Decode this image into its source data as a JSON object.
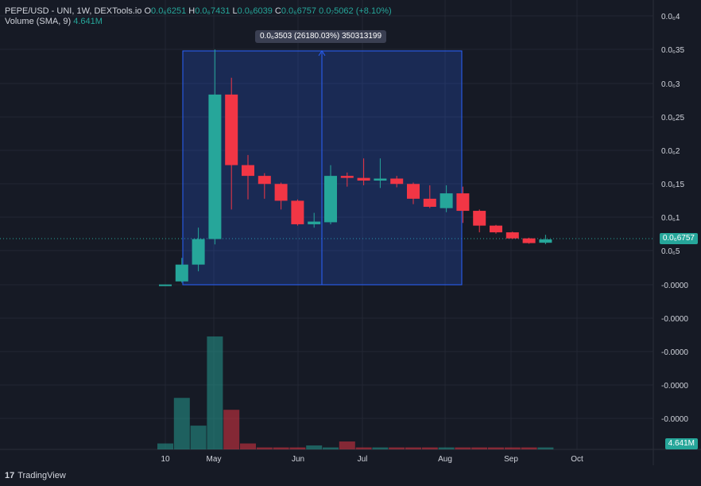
{
  "legend": {
    "pair": "PEPE/USD - UNI, 1W, DEXTools.io",
    "o_label": "O",
    "o_val": "0.0₆6251",
    "h_label": "H",
    "h_val": "0.0₆7431",
    "l_label": "L",
    "l_val": "0.0₆6039",
    "c_label": "C",
    "c_val": "0.0₆6757",
    "change": "0.0₇5062 (+8.10%)",
    "volume_label": "Volume (SMA, 9)",
    "volume_val": "4.641M"
  },
  "price_tag": "0.0₆6757",
  "volume_tag": "4.641M",
  "measure_label": "0.0₆3503 (26180.03%) 350313199",
  "price_axis_labels": [
    "0.0₆4",
    "0.0₆35",
    "0.0₆3",
    "0.0₆25",
    "0.0₆2",
    "0.0₆15",
    "0.0₆1",
    "0.0₆5",
    "-0.0000",
    "-0.0000",
    "-0.0000",
    "-0.0000",
    "-0.0000"
  ],
  "time_axis_labels": [
    "10",
    "May",
    "Jun",
    "Jul",
    "Aug",
    "Sep",
    "Oct"
  ],
  "footer": {
    "brand": "TradingView"
  },
  "colors": {
    "up": "#26a69a",
    "down": "#f23645",
    "bg": "#161a25",
    "grid": "#232733",
    "measure": "#2962ff"
  },
  "chart_data": {
    "type": "candlestick",
    "title": "PEPE/USD - UNI, 1W, DEXTools.io",
    "ylabel": "",
    "ylim": [
      -1.5e-09,
      4.1e-07
    ],
    "candles": [
      {
        "o": 2e-10,
        "h": 3e-10,
        "l": 1e-10,
        "c": 4e-10
      },
      {
        "o": 5e-09,
        "h": 4e-08,
        "l": 3e-09,
        "c": 3e-08
      },
      {
        "o": 3e-08,
        "h": 8.5e-08,
        "l": 2e-08,
        "c": 6.8e-08
      },
      {
        "o": 6.8e-08,
        "h": 3.5e-07,
        "l": 6e-08,
        "c": 2.83e-07
      },
      {
        "o": 2.83e-07,
        "h": 3.08e-07,
        "l": 1.12e-07,
        "c": 1.78e-07
      },
      {
        "o": 1.78e-07,
        "h": 1.93e-07,
        "l": 1.27e-07,
        "c": 1.62e-07
      },
      {
        "o": 1.62e-07,
        "h": 1.66e-07,
        "l": 1.28e-07,
        "c": 1.5e-07
      },
      {
        "o": 1.5e-07,
        "h": 1.52e-07,
        "l": 1.12e-07,
        "c": 1.25e-07
      },
      {
        "o": 1.25e-07,
        "h": 1.27e-07,
        "l": 8.8e-08,
        "c": 9e-08
      },
      {
        "o": 9e-08,
        "h": 1.07e-07,
        "l": 8.5e-08,
        "c": 9.4e-08
      },
      {
        "o": 9.3e-08,
        "h": 1.78e-07,
        "l": 9e-08,
        "c": 1.62e-07
      },
      {
        "o": 1.62e-07,
        "h": 1.67e-07,
        "l": 1.46e-07,
        "c": 1.59e-07
      },
      {
        "o": 1.59e-07,
        "h": 1.88e-07,
        "l": 1.48e-07,
        "c": 1.55e-07
      },
      {
        "o": 1.55e-07,
        "h": 1.88e-07,
        "l": 1.44e-07,
        "c": 1.58e-07
      },
      {
        "o": 1.58e-07,
        "h": 1.62e-07,
        "l": 1.45e-07,
        "c": 1.5e-07
      },
      {
        "o": 1.5e-07,
        "h": 1.52e-07,
        "l": 1.2e-07,
        "c": 1.28e-07
      },
      {
        "o": 1.28e-07,
        "h": 1.48e-07,
        "l": 1.14e-07,
        "c": 1.16e-07
      },
      {
        "o": 1.14e-07,
        "h": 1.48e-07,
        "l": 1.08e-07,
        "c": 1.36e-07
      },
      {
        "o": 1.36e-07,
        "h": 1.46e-07,
        "l": 9.2e-08,
        "c": 1.1e-07
      },
      {
        "o": 1.1e-07,
        "h": 1.12e-07,
        "l": 7.8e-08,
        "c": 8.8e-08
      },
      {
        "o": 8.8e-08,
        "h": 8.9e-08,
        "l": 7.6e-08,
        "c": 7.8e-08
      },
      {
        "o": 7.8e-08,
        "h": 7.9e-08,
        "l": 6.8e-08,
        "c": 6.9e-08
      },
      {
        "o": 6.9e-08,
        "h": 7e-08,
        "l": 6.1e-08,
        "c": 6.2e-08
      },
      {
        "o": 6.251e-08,
        "h": 7.431e-08,
        "l": 6.039e-08,
        "c": 6.757e-08
      }
    ],
    "volume": [
      3,
      26,
      12,
      57,
      20,
      3,
      1,
      1,
      1,
      2,
      1,
      4,
      1,
      1,
      1,
      1,
      1,
      1,
      1,
      1,
      1,
      1,
      1,
      1
    ]
  }
}
